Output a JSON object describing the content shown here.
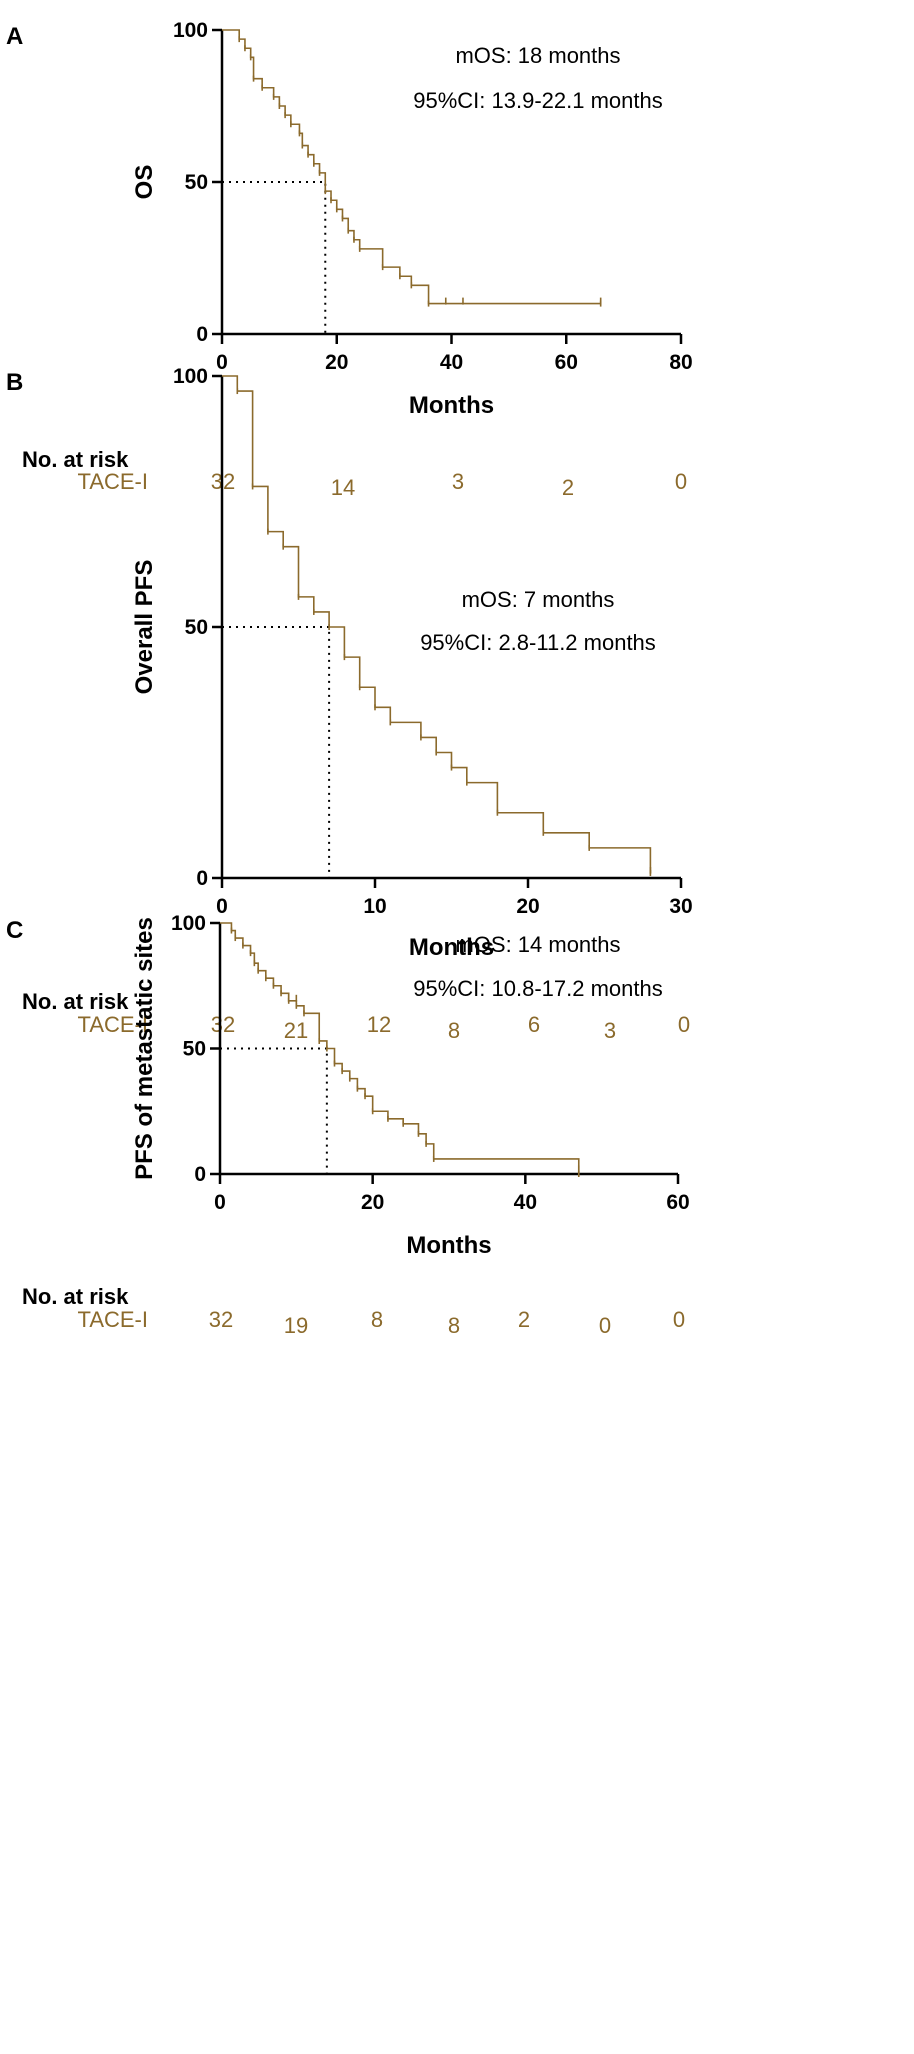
{
  "colors": {
    "curve": "#8b6a2c",
    "axis": "#000000"
  },
  "chart_data": [
    {
      "type": "line",
      "subtype": "kaplan-meier",
      "panel": "A",
      "ylabel": "OS",
      "xlabel": "Months",
      "xlim": [
        0,
        80
      ],
      "ylim": [
        0,
        100
      ],
      "xticks": [
        0,
        20,
        40,
        60,
        80
      ],
      "yticks": [
        0,
        50,
        100
      ],
      "annotations": [
        "mOS: 18 months",
        "95%CI: 13.9-22.1 months"
      ],
      "median": 18,
      "series": [
        {
          "name": "TACE-I",
          "steps": [
            [
              0,
              100
            ],
            [
              3,
              97
            ],
            [
              4,
              94
            ],
            [
              5,
              91
            ],
            [
              5.5,
              84
            ],
            [
              7,
              81
            ],
            [
              9,
              78
            ],
            [
              10,
              75
            ],
            [
              11,
              72
            ],
            [
              12,
              69
            ],
            [
              13.5,
              66
            ],
            [
              14,
              62
            ],
            [
              15,
              59
            ],
            [
              16,
              56
            ],
            [
              17,
              53
            ],
            [
              18,
              47
            ],
            [
              19,
              44
            ],
            [
              20,
              41
            ],
            [
              21,
              38
            ],
            [
              22,
              34
            ],
            [
              23,
              31
            ],
            [
              24,
              28
            ],
            [
              28,
              22
            ],
            [
              31,
              19
            ],
            [
              33,
              16
            ],
            [
              36,
              10
            ],
            [
              66,
              10
            ]
          ],
          "censored": [
            [
              39,
              10
            ],
            [
              42,
              10
            ],
            [
              66,
              10
            ]
          ]
        }
      ],
      "risk_table": {
        "header": "No. at risk",
        "group": "TACE-I",
        "x": [
          0,
          20,
          40,
          60,
          80
        ],
        "counts": [
          32,
          14,
          3,
          2,
          0
        ]
      }
    },
    {
      "type": "line",
      "subtype": "kaplan-meier",
      "panel": "B",
      "ylabel": "Overall PFS",
      "xlabel": "Months",
      "xlim": [
        0,
        30
      ],
      "ylim": [
        0,
        100
      ],
      "xticks": [
        0,
        10,
        20,
        30
      ],
      "yticks": [
        0,
        50,
        100
      ],
      "annotations": [
        "mOS: 7 months",
        "95%CI: 2.8-11.2 months"
      ],
      "median": 7,
      "series": [
        {
          "name": "TACE-I",
          "steps": [
            [
              0,
              100
            ],
            [
              1,
              97
            ],
            [
              2,
              78
            ],
            [
              3,
              69
            ],
            [
              4,
              66
            ],
            [
              5,
              56
            ],
            [
              6,
              53
            ],
            [
              7,
              50
            ],
            [
              8,
              44
            ],
            [
              9,
              38
            ],
            [
              10,
              34
            ],
            [
              11,
              31
            ],
            [
              13,
              28
            ],
            [
              14,
              25
            ],
            [
              15,
              22
            ],
            [
              16,
              19
            ],
            [
              18,
              13
            ],
            [
              21,
              9
            ],
            [
              24,
              6
            ],
            [
              28,
              1
            ]
          ],
          "censored": [
            [
              28,
              1
            ]
          ]
        }
      ],
      "risk_table": {
        "header": "No. at risk",
        "group": "TACE-I",
        "x": [
          0,
          5,
          10,
          15,
          20,
          25,
          30
        ],
        "counts": [
          32,
          21,
          12,
          8,
          6,
          3,
          0
        ]
      }
    },
    {
      "type": "line",
      "subtype": "kaplan-meier",
      "panel": "C",
      "ylabel": "PFS of metastatic sites",
      "xlabel": "Months",
      "xlim": [
        0,
        60
      ],
      "ylim": [
        0,
        100
      ],
      "xticks": [
        0,
        20,
        40,
        60
      ],
      "yticks": [
        0,
        50,
        100
      ],
      "annotations": [
        "mOS: 14 months",
        "95%CI: 10.8-17.2 months"
      ],
      "median": 14,
      "series": [
        {
          "name": "TACE-I",
          "steps": [
            [
              0,
              100
            ],
            [
              1.5,
              97
            ],
            [
              2,
              94
            ],
            [
              3,
              91
            ],
            [
              4,
              88
            ],
            [
              4.5,
              84
            ],
            [
              5,
              81
            ],
            [
              6,
              78
            ],
            [
              7,
              75
            ],
            [
              8,
              72
            ],
            [
              9,
              69
            ],
            [
              10,
              67
            ],
            [
              11,
              64
            ],
            [
              13,
              53
            ],
            [
              14,
              50
            ],
            [
              15,
              44
            ],
            [
              16,
              41
            ],
            [
              17,
              38
            ],
            [
              18,
              34
            ],
            [
              19,
              31
            ],
            [
              20,
              25
            ],
            [
              22,
              22
            ],
            [
              24,
              20
            ],
            [
              26,
              16
            ],
            [
              27,
              12
            ],
            [
              28,
              6
            ],
            [
              47,
              0
            ]
          ],
          "censored": [
            [
              9,
              69
            ],
            [
              10,
              69
            ],
            [
              47,
              1
            ]
          ]
        }
      ],
      "risk_table": {
        "header": "No. at risk",
        "group": "TACE-I",
        "x": [
          0,
          10,
          20,
          30,
          40,
          50,
          60
        ],
        "counts": [
          32,
          19,
          8,
          8,
          2,
          0,
          0
        ]
      }
    }
  ]
}
